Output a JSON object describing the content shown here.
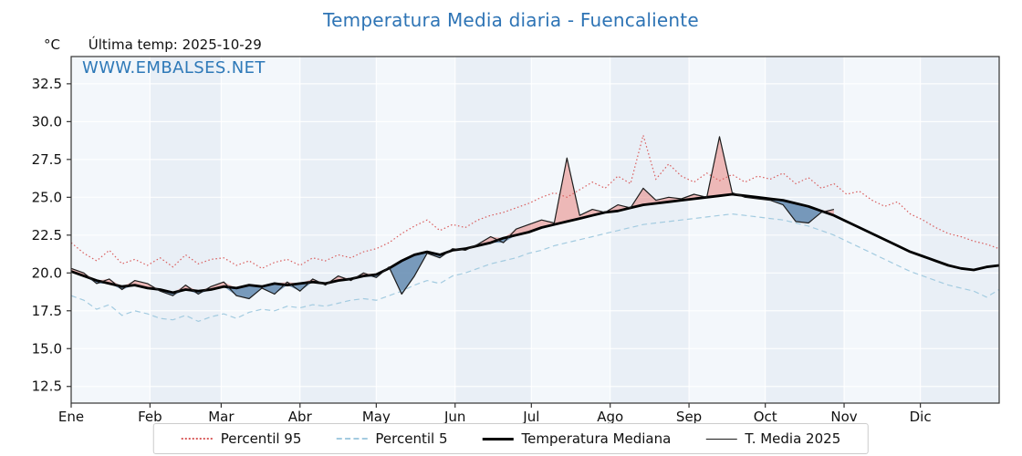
{
  "title": "Temperatura Media diaria - Fuencaliente",
  "header": {
    "unit_label": "°C",
    "last_temp": "Última temp: 2025-10-29"
  },
  "watermark": "WWW.EMBALSES.NET",
  "legend": [
    {
      "label": "Percentil 95"
    },
    {
      "label": "Percentil 5"
    },
    {
      "label": "Temperatura Mediana"
    },
    {
      "label": "T. Media 2025"
    }
  ],
  "colors": {
    "title": "#2e74b5",
    "watermark": "#2e79b8",
    "p95_line": "#d95c5c",
    "p5_line": "#a3cbe0",
    "median_line": "#000000",
    "t2025_line": "#1c1c1c",
    "fill_above": "#e87a73",
    "fill_below": "#4f7ba6",
    "plot_bg": "#e9eff6",
    "band_light": "#f6f9fc",
    "grid": "#ffffff",
    "frame": "#333333"
  },
  "chart_data": {
    "type": "line",
    "title": "Temperatura Media diaria - Fuencaliente",
    "ylabel": "°C",
    "x_step_days": 5,
    "days_in_year": 365,
    "ylim": [
      11.4,
      34.3
    ],
    "yticks": [
      12.5,
      15.0,
      17.5,
      20.0,
      22.5,
      25.0,
      27.5,
      30.0,
      32.5
    ],
    "month_labels": [
      "Ene",
      "Feb",
      "Mar",
      "Abr",
      "May",
      "Jun",
      "Jul",
      "Ago",
      "Sep",
      "Oct",
      "Nov",
      "Dic"
    ],
    "month_start_days": [
      0,
      31,
      59,
      90,
      120,
      151,
      181,
      212,
      243,
      273,
      304,
      334
    ],
    "legend_position": "bottom-center",
    "grid": true,
    "series": [
      {
        "name": "Percentil 95",
        "style": "dotted",
        "values": [
          22.0,
          21.3,
          20.8,
          21.5,
          20.6,
          20.9,
          20.5,
          21.0,
          20.4,
          21.2,
          20.6,
          20.9,
          21.0,
          20.5,
          20.8,
          20.3,
          20.7,
          20.9,
          20.5,
          21.0,
          20.8,
          21.2,
          21.0,
          21.4,
          21.6,
          22.0,
          22.6,
          23.1,
          23.5,
          22.8,
          23.2,
          23.0,
          23.5,
          23.8,
          24.0,
          24.3,
          24.6,
          25.0,
          25.3,
          25.0,
          25.5,
          26.0,
          25.6,
          26.4,
          25.9,
          29.1,
          26.2,
          27.2,
          26.4,
          26.0,
          26.6,
          26.1,
          26.5,
          26.0,
          26.4,
          26.2,
          26.6,
          25.9,
          26.3,
          25.6,
          25.9,
          25.2,
          25.4,
          24.8,
          24.4,
          24.7,
          23.9,
          23.5,
          23.0,
          22.6,
          22.4,
          22.1,
          21.9,
          21.6
        ]
      },
      {
        "name": "Percentil 5",
        "style": "dashed",
        "values": [
          18.5,
          18.2,
          17.6,
          17.9,
          17.2,
          17.5,
          17.3,
          17.0,
          16.9,
          17.2,
          16.8,
          17.1,
          17.3,
          17.0,
          17.4,
          17.6,
          17.5,
          17.8,
          17.7,
          17.9,
          17.8,
          18.0,
          18.2,
          18.3,
          18.2,
          18.5,
          18.8,
          19.2,
          19.5,
          19.3,
          19.8,
          20.0,
          20.3,
          20.6,
          20.8,
          21.0,
          21.3,
          21.5,
          21.8,
          22.0,
          22.2,
          22.4,
          22.6,
          22.8,
          23.0,
          23.2,
          23.3,
          23.4,
          23.5,
          23.6,
          23.7,
          23.8,
          23.9,
          23.8,
          23.7,
          23.6,
          23.5,
          23.3,
          23.1,
          22.8,
          22.5,
          22.1,
          21.7,
          21.3,
          20.9,
          20.5,
          20.1,
          19.8,
          19.5,
          19.2,
          19.0,
          18.8,
          18.4,
          18.9
        ]
      },
      {
        "name": "Temperatura Mediana",
        "style": "solid-thick",
        "values": [
          20.1,
          19.8,
          19.5,
          19.3,
          19.1,
          19.2,
          19.0,
          18.9,
          18.7,
          18.9,
          18.8,
          18.9,
          19.1,
          19.0,
          19.2,
          19.1,
          19.3,
          19.2,
          19.3,
          19.4,
          19.3,
          19.5,
          19.6,
          19.8,
          19.9,
          20.3,
          20.8,
          21.2,
          21.4,
          21.2,
          21.5,
          21.6,
          21.8,
          22.0,
          22.3,
          22.5,
          22.7,
          23.0,
          23.2,
          23.4,
          23.6,
          23.8,
          24.0,
          24.1,
          24.3,
          24.5,
          24.6,
          24.7,
          24.8,
          24.9,
          25.0,
          25.1,
          25.2,
          25.1,
          25.0,
          24.9,
          24.8,
          24.6,
          24.4,
          24.1,
          23.8,
          23.4,
          23.0,
          22.6,
          22.2,
          21.8,
          21.4,
          21.1,
          20.8,
          20.5,
          20.3,
          20.2,
          20.4,
          20.5
        ]
      },
      {
        "name": "T. Media 2025",
        "style": "solid-thin",
        "ends_day": 302,
        "values": [
          20.3,
          20.0,
          19.3,
          19.6,
          18.9,
          19.5,
          19.3,
          18.8,
          18.5,
          19.2,
          18.6,
          19.1,
          19.4,
          18.5,
          18.3,
          19.0,
          18.6,
          19.4,
          18.8,
          19.6,
          19.2,
          19.8,
          19.5,
          20.0,
          19.7,
          20.4,
          18.6,
          19.8,
          21.3,
          21.0,
          21.6,
          21.5,
          21.9,
          22.4,
          22.0,
          22.9,
          23.2,
          23.5,
          23.3,
          27.6,
          23.8,
          24.2,
          24.0,
          24.5,
          24.3,
          25.6,
          24.8,
          25.0,
          24.9,
          25.2,
          25.0,
          29.0,
          25.3,
          25.0,
          24.9,
          24.8,
          24.5,
          23.4,
          23.3,
          24.0,
          24.2
        ]
      }
    ],
    "fill_between": {
      "base_series": "Temperatura Mediana",
      "compare_series": "T. Media 2025",
      "above_color_meaning": "2025 above median (warm, red)",
      "below_color_meaning": "2025 below median (cool, blue)"
    }
  }
}
